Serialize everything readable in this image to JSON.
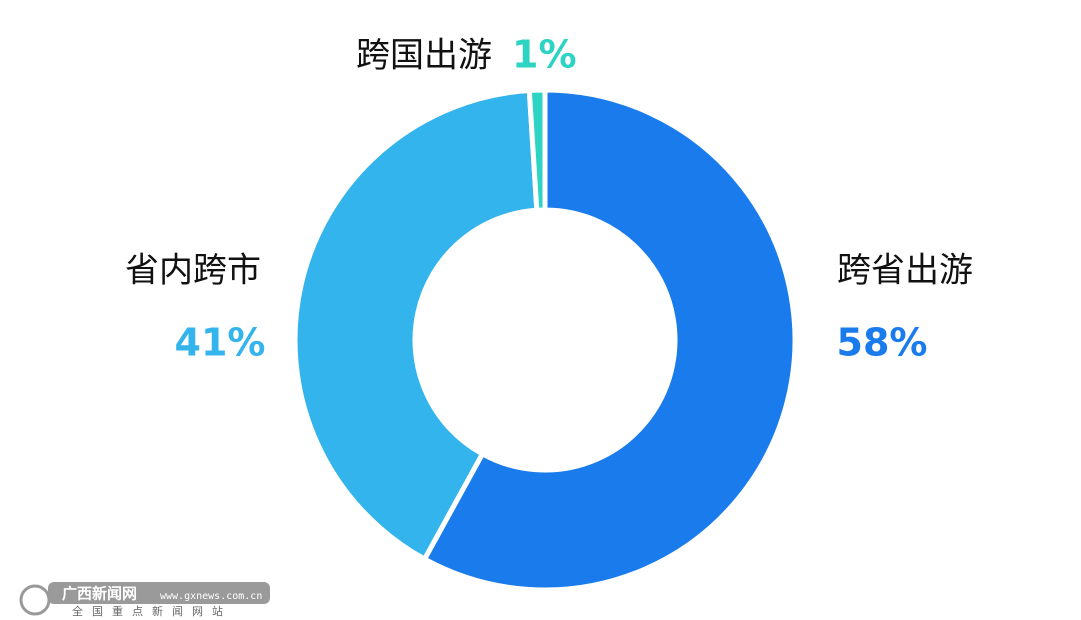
{
  "chart_data": {
    "type": "pie",
    "categories": [
      "跨省出游",
      "省内跨市",
      "跨国出游"
    ],
    "values": [
      58,
      41,
      1
    ],
    "value_labels": [
      "58%",
      "41%",
      "1%"
    ],
    "colors": [
      "#1a7bec",
      "#34b4ec",
      "#2dd3c3"
    ],
    "watermark": {
      "name": "广西新闻网",
      "url": "www.gxnews.com.cn",
      "slogan": "全国重点新闻网站"
    }
  }
}
